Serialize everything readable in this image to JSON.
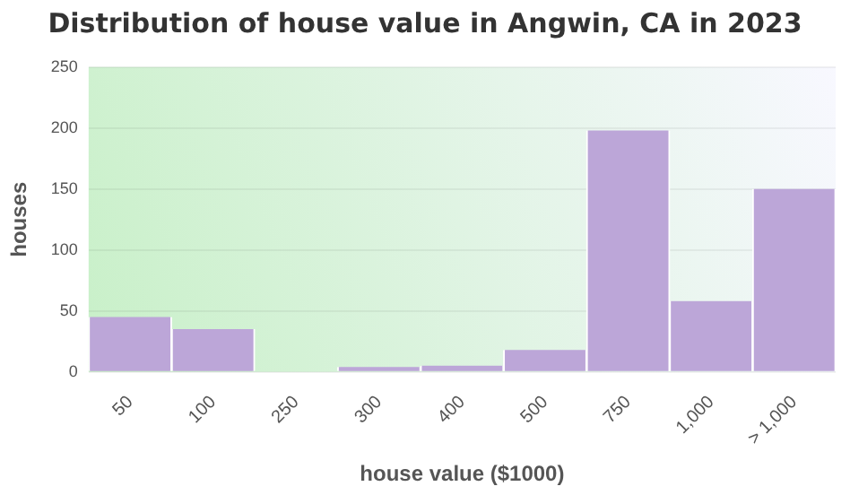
{
  "chart_data": {
    "type": "bar",
    "title": "Distribution of house value in Angwin, CA in 2023",
    "xlabel": "house value ($1000)",
    "ylabel": "houses",
    "categories": [
      "50",
      "100",
      "250",
      "300",
      "400",
      "500",
      "750",
      "1,000",
      "> 1,000"
    ],
    "values": [
      45,
      35,
      0,
      4,
      5,
      18,
      198,
      58,
      150
    ],
    "color": "#bca6d8",
    "ylim": [
      0,
      250
    ],
    "yticks": [
      0,
      50,
      100,
      150,
      200,
      250
    ],
    "grid": "y"
  }
}
